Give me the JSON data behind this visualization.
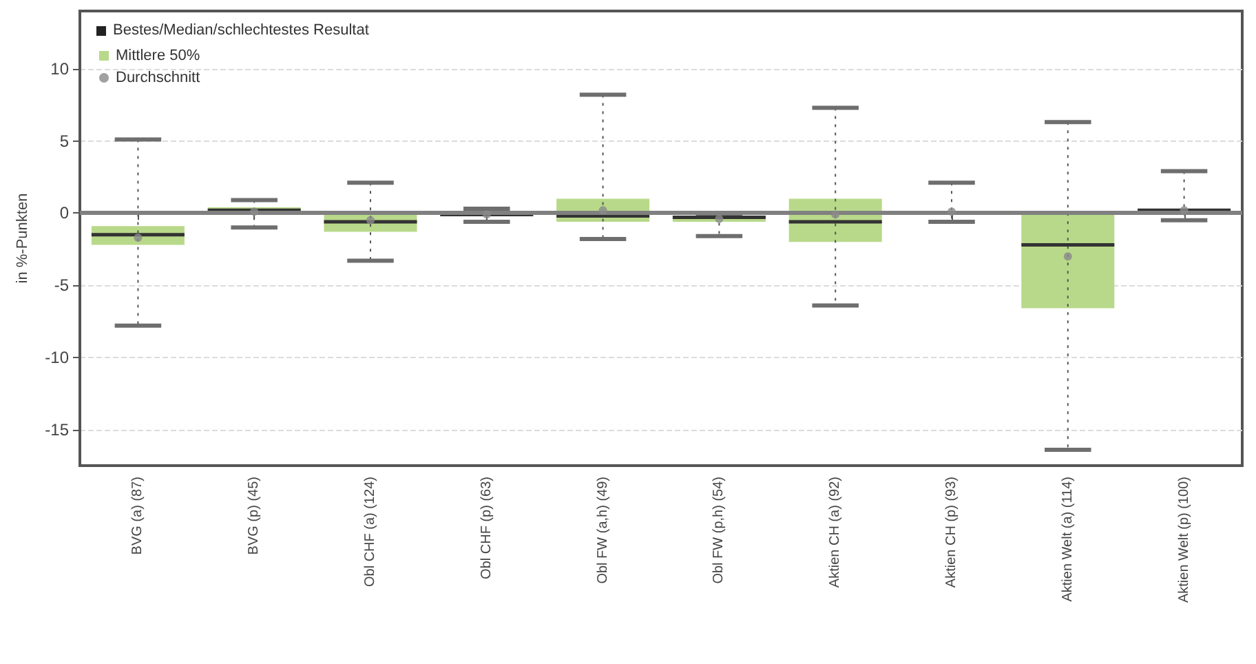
{
  "chart_data": {
    "type": "box",
    "ylabel": "in %-Punkten",
    "legend_title": "Bestes/Median/schlechtestes Resultat",
    "categories": [
      "BVG (a) (87)",
      "BVG (p) (45)",
      "Obl CHF (a) (124)",
      "Obl CHF (p) (63)",
      "Obl FW (a,h) (49)",
      "Obl FW (p,h) (54)",
      "Aktien CH (a) (92)",
      "Aktien CH (p) (93)",
      "Aktien Welt (a) (114)",
      "Aktien Welt (p) (100)"
    ],
    "series": [
      {
        "type": "box",
        "name": "Mittlere 50%",
        "color": "#b9d98a",
        "boxes": [
          {
            "low": -7.8,
            "q1": -2.2,
            "median": -1.5,
            "q3": -0.9,
            "high": 5.1
          },
          {
            "low": -1.0,
            "q1": 0.0,
            "median": 0.2,
            "q3": 0.4,
            "high": 0.9
          },
          {
            "low": -3.3,
            "q1": -1.3,
            "median": -0.6,
            "q3": -0.1,
            "high": 2.1
          },
          {
            "low": -0.6,
            "q1": -0.2,
            "median": -0.1,
            "q3": 0.1,
            "high": 0.3
          },
          {
            "low": -1.8,
            "q1": -0.6,
            "median": -0.2,
            "q3": 1.0,
            "high": 8.2
          },
          {
            "low": -1.6,
            "q1": -0.6,
            "median": -0.3,
            "q3": -0.2,
            "high": -0.1
          },
          {
            "low": -6.4,
            "q1": -2.0,
            "median": -0.6,
            "q3": 1.0,
            "high": 7.3
          },
          {
            "low": -0.6,
            "q1": -0.1,
            "median": 0.0,
            "q3": 0.1,
            "high": 2.1
          },
          {
            "low": -16.4,
            "q1": -6.6,
            "median": -2.2,
            "q3": 0.0,
            "high": 6.3
          },
          {
            "low": -0.5,
            "q1": 0.0,
            "median": 0.2,
            "q3": 0.3,
            "high": 2.9
          }
        ]
      },
      {
        "type": "scatter",
        "name": "Durchschnitt",
        "color": "#8a8a8a",
        "x": [
          "BVG (a) (87)",
          "BVG (p) (45)",
          "Obl CHF (a) (124)",
          "Obl CHF (p) (63)",
          "Obl FW (a,h) (49)",
          "Obl FW (p,h) (54)",
          "Aktien CH (a) (92)",
          "Aktien CH (p) (93)",
          "Aktien Welt (a) (114)",
          "Aktien Welt (p) (100)"
        ],
        "values": [
          -1.7,
          0.1,
          -0.5,
          -0.1,
          0.2,
          -0.4,
          -0.1,
          0.1,
          -3.0,
          0.2
        ]
      }
    ],
    "ylim": [
      -17.5,
      14
    ],
    "yticks": [
      -15,
      -10,
      -5,
      0,
      5,
      10
    ],
    "grid": "y",
    "legend": "top left",
    "ref_lines": [
      {
        "axis": "y",
        "value": 0,
        "color": "#808080"
      }
    ]
  }
}
